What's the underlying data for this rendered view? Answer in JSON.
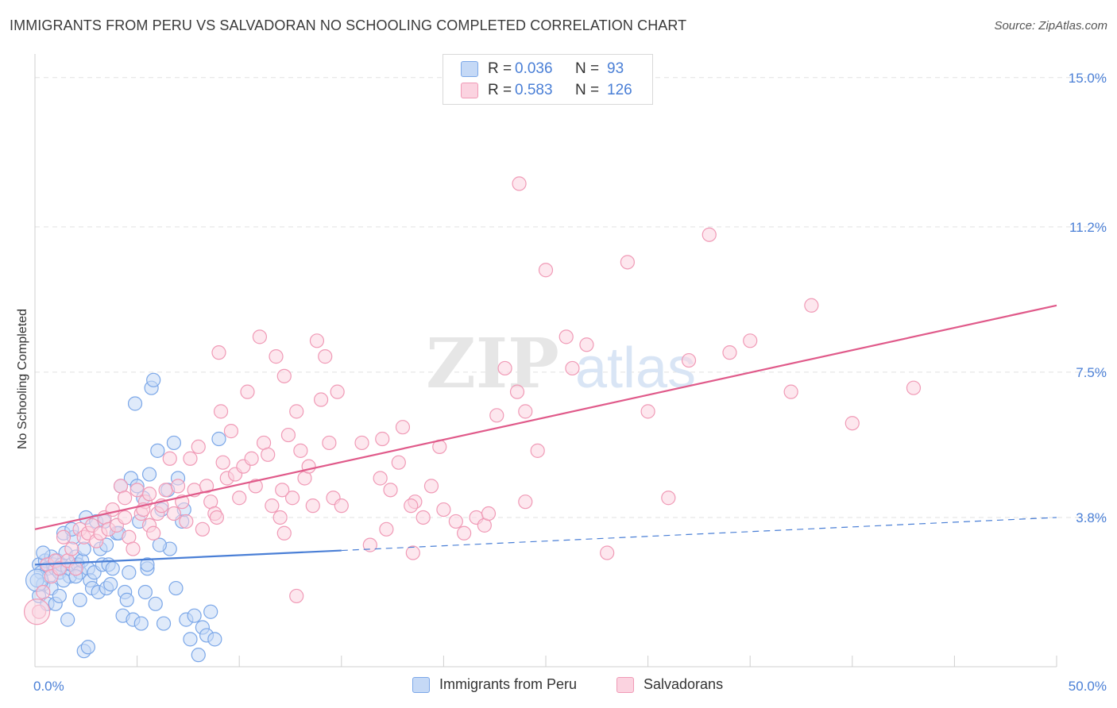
{
  "title": "IMMIGRANTS FROM PERU VS SALVADORAN NO SCHOOLING COMPLETED CORRELATION CHART",
  "source": "Source: ZipAtlas.com",
  "watermark": {
    "zip": "ZIP",
    "atlas": "atlas"
  },
  "legend_top": [
    {
      "r_label": "R =",
      "r_value": "0.036",
      "n_label": "N =",
      "n_value": "93",
      "color": "#7ba7e8",
      "fill": "#c5d9f6"
    },
    {
      "r_label": "R =",
      "r_value": "0.583",
      "n_label": "N =",
      "n_value": "126",
      "color": "#f09ab6",
      "fill": "#fbd3e0"
    }
  ],
  "legend_bottom": [
    {
      "label": "Immigrants from Peru",
      "color": "#7ba7e8",
      "fill": "#c5d9f6"
    },
    {
      "label": "Salvadorans",
      "color": "#f09ab6",
      "fill": "#fbd3e0"
    }
  ],
  "chart_data": {
    "type": "scatter",
    "title": "IMMIGRANTS FROM PERU VS SALVADORAN NO SCHOOLING COMPLETED CORRELATION CHART",
    "xlabel": "",
    "ylabel": "No Schooling Completed",
    "xlim": [
      0,
      50
    ],
    "ylim": [
      0,
      15.4
    ],
    "x_tick_labels": [
      "0.0%",
      "50.0%"
    ],
    "y_tick_labels": [
      "3.8%",
      "7.5%",
      "11.2%",
      "15.0%"
    ],
    "y_ticks": [
      3.8,
      7.5,
      11.2,
      15.0
    ],
    "grid": true,
    "series": [
      {
        "name": "Immigrants from Peru",
        "color": "#4a7fd6",
        "fill": "#c5d9f6",
        "trend": {
          "x0": 0,
          "y0": 2.6,
          "x1": 50,
          "y1": 3.8,
          "solid_until": 15
        },
        "points": [
          [
            0.2,
            2.6
          ],
          [
            0.3,
            2.4
          ],
          [
            0.4,
            2.1
          ],
          [
            0.5,
            2.7
          ],
          [
            0.6,
            2.5
          ],
          [
            0.7,
            2.3
          ],
          [
            0.8,
            2.8
          ],
          [
            0.9,
            2.6
          ],
          [
            1.0,
            2.5
          ],
          [
            1.1,
            2.7
          ],
          [
            1.2,
            2.4
          ],
          [
            1.3,
            2.6
          ],
          [
            1.4,
            3.4
          ],
          [
            1.5,
            2.9
          ],
          [
            1.6,
            2.5
          ],
          [
            1.7,
            2.3
          ],
          [
            1.8,
            2.6
          ],
          [
            1.9,
            3.3
          ],
          [
            2.0,
            2.8
          ],
          [
            2.1,
            2.6
          ],
          [
            2.2,
            2.4
          ],
          [
            2.3,
            2.7
          ],
          [
            2.4,
            3.0
          ],
          [
            2.5,
            3.8
          ],
          [
            2.6,
            2.5
          ],
          [
            2.7,
            2.2
          ],
          [
            2.8,
            2.0
          ],
          [
            2.9,
            2.4
          ],
          [
            3.0,
            3.7
          ],
          [
            3.1,
            1.9
          ],
          [
            3.2,
            3.0
          ],
          [
            3.3,
            2.6
          ],
          [
            3.4,
            3.7
          ],
          [
            3.5,
            2.0
          ],
          [
            3.6,
            2.6
          ],
          [
            3.7,
            2.1
          ],
          [
            3.8,
            2.5
          ],
          [
            4.0,
            3.4
          ],
          [
            4.2,
            4.6
          ],
          [
            4.3,
            1.3
          ],
          [
            4.4,
            1.9
          ],
          [
            4.5,
            1.7
          ],
          [
            4.6,
            2.4
          ],
          [
            4.7,
            4.8
          ],
          [
            4.8,
            1.2
          ],
          [
            4.9,
            6.7
          ],
          [
            5.0,
            4.6
          ],
          [
            5.1,
            3.7
          ],
          [
            5.2,
            1.1
          ],
          [
            5.3,
            4.3
          ],
          [
            5.4,
            1.9
          ],
          [
            5.5,
            2.5
          ],
          [
            5.6,
            4.9
          ],
          [
            5.7,
            7.1
          ],
          [
            5.8,
            7.3
          ],
          [
            5.9,
            1.6
          ],
          [
            6.0,
            5.5
          ],
          [
            6.2,
            4.0
          ],
          [
            6.3,
            1.1
          ],
          [
            6.5,
            4.5
          ],
          [
            6.6,
            3.0
          ],
          [
            6.8,
            5.7
          ],
          [
            6.9,
            2.0
          ],
          [
            7.0,
            4.8
          ],
          [
            7.2,
            3.7
          ],
          [
            7.3,
            4.0
          ],
          [
            7.4,
            1.2
          ],
          [
            7.6,
            0.7
          ],
          [
            7.8,
            1.3
          ],
          [
            8.0,
            0.3
          ],
          [
            8.2,
            1.0
          ],
          [
            8.4,
            0.8
          ],
          [
            8.6,
            1.4
          ],
          [
            8.8,
            0.7
          ],
          [
            9.0,
            5.8
          ],
          [
            0.1,
            2.2
          ],
          [
            0.2,
            1.8
          ],
          [
            0.4,
            2.9
          ],
          [
            0.6,
            1.6
          ],
          [
            0.8,
            2.0
          ],
          [
            1.0,
            1.6
          ],
          [
            1.2,
            1.8
          ],
          [
            1.4,
            2.2
          ],
          [
            1.6,
            1.2
          ],
          [
            1.8,
            3.5
          ],
          [
            2.0,
            2.3
          ],
          [
            2.2,
            1.7
          ],
          [
            2.4,
            0.4
          ],
          [
            2.6,
            0.5
          ],
          [
            3.5,
            3.1
          ],
          [
            4.1,
            3.4
          ],
          [
            5.5,
            2.6
          ],
          [
            6.1,
            3.1
          ]
        ]
      },
      {
        "name": "Salvadorans",
        "color": "#e05a8a",
        "fill": "#fbd3e0",
        "trend": {
          "x0": 0,
          "y0": 3.5,
          "x1": 50,
          "y1": 9.2,
          "solid_until": 50
        },
        "points": [
          [
            0.2,
            1.4
          ],
          [
            0.4,
            1.9
          ],
          [
            0.6,
            2.6
          ],
          [
            0.8,
            2.3
          ],
          [
            1.0,
            2.7
          ],
          [
            1.2,
            2.5
          ],
          [
            1.4,
            3.3
          ],
          [
            1.6,
            2.7
          ],
          [
            1.8,
            3.0
          ],
          [
            2.0,
            2.5
          ],
          [
            2.2,
            3.5
          ],
          [
            2.4,
            3.3
          ],
          [
            2.6,
            3.4
          ],
          [
            2.8,
            3.6
          ],
          [
            3.0,
            3.2
          ],
          [
            3.2,
            3.4
          ],
          [
            3.4,
            3.8
          ],
          [
            3.6,
            3.5
          ],
          [
            3.8,
            4.0
          ],
          [
            4.0,
            3.6
          ],
          [
            4.2,
            4.6
          ],
          [
            4.4,
            4.3
          ],
          [
            4.6,
            3.3
          ],
          [
            4.8,
            3.0
          ],
          [
            5.0,
            4.5
          ],
          [
            5.2,
            3.9
          ],
          [
            5.4,
            4.2
          ],
          [
            5.6,
            3.6
          ],
          [
            5.8,
            3.4
          ],
          [
            6.0,
            3.9
          ],
          [
            6.2,
            4.1
          ],
          [
            6.4,
            4.5
          ],
          [
            6.6,
            5.3
          ],
          [
            6.8,
            3.9
          ],
          [
            7.0,
            4.6
          ],
          [
            7.2,
            4.2
          ],
          [
            7.4,
            3.7
          ],
          [
            7.6,
            5.3
          ],
          [
            7.8,
            4.5
          ],
          [
            8.0,
            5.6
          ],
          [
            8.2,
            3.5
          ],
          [
            8.4,
            4.6
          ],
          [
            8.6,
            4.2
          ],
          [
            8.8,
            3.9
          ],
          [
            9.0,
            8.0
          ],
          [
            9.2,
            5.2
          ],
          [
            9.4,
            4.8
          ],
          [
            9.6,
            6.0
          ],
          [
            9.8,
            4.9
          ],
          [
            10.0,
            4.3
          ],
          [
            10.2,
            5.1
          ],
          [
            10.4,
            7.0
          ],
          [
            10.6,
            5.3
          ],
          [
            10.8,
            4.6
          ],
          [
            11.0,
            8.4
          ],
          [
            11.2,
            5.7
          ],
          [
            11.4,
            5.4
          ],
          [
            11.6,
            4.1
          ],
          [
            11.8,
            7.9
          ],
          [
            12.0,
            3.8
          ],
          [
            12.2,
            7.4
          ],
          [
            12.4,
            5.9
          ],
          [
            12.6,
            4.3
          ],
          [
            12.8,
            6.5
          ],
          [
            13.0,
            5.5
          ],
          [
            13.2,
            4.8
          ],
          [
            13.4,
            5.1
          ],
          [
            13.6,
            4.1
          ],
          [
            13.8,
            8.3
          ],
          [
            14.0,
            6.8
          ],
          [
            14.2,
            7.9
          ],
          [
            14.4,
            5.7
          ],
          [
            14.6,
            4.3
          ],
          [
            14.8,
            7.0
          ],
          [
            15.0,
            4.1
          ],
          [
            16.0,
            5.7
          ],
          [
            16.4,
            3.1
          ],
          [
            17.0,
            5.8
          ],
          [
            17.4,
            4.5
          ],
          [
            17.8,
            5.2
          ],
          [
            18.0,
            6.1
          ],
          [
            18.6,
            4.2
          ],
          [
            19.0,
            3.8
          ],
          [
            19.4,
            4.6
          ],
          [
            19.8,
            5.6
          ],
          [
            20.0,
            4.0
          ],
          [
            20.6,
            3.7
          ],
          [
            21.0,
            3.4
          ],
          [
            21.6,
            3.8
          ],
          [
            22.0,
            3.6
          ],
          [
            22.6,
            6.4
          ],
          [
            23.0,
            7.6
          ],
          [
            23.6,
            7.0
          ],
          [
            24.0,
            6.5
          ],
          [
            24.6,
            5.5
          ],
          [
            25.0,
            10.1
          ],
          [
            26.0,
            8.4
          ],
          [
            27.0,
            8.2
          ],
          [
            28.0,
            2.9
          ],
          [
            29.0,
            10.3
          ],
          [
            30.0,
            6.5
          ],
          [
            31.0,
            4.3
          ],
          [
            32.0,
            7.8
          ],
          [
            33.0,
            11.0
          ],
          [
            34.0,
            8.0
          ],
          [
            35.0,
            8.3
          ],
          [
            37.0,
            7.0
          ],
          [
            38.0,
            9.2
          ],
          [
            40.0,
            6.2
          ],
          [
            43.0,
            7.1
          ],
          [
            4.4,
            3.8
          ],
          [
            5.6,
            4.4
          ],
          [
            9.1,
            6.5
          ],
          [
            12.1,
            4.5
          ],
          [
            16.9,
            4.8
          ],
          [
            17.2,
            3.5
          ],
          [
            18.5,
            2.9
          ],
          [
            24.0,
            4.2
          ],
          [
            26.3,
            7.6
          ],
          [
            23.7,
            12.3
          ],
          [
            12.2,
            3.4
          ],
          [
            5.3,
            4.0
          ],
          [
            8.9,
            3.8
          ],
          [
            22.2,
            3.9
          ],
          [
            18.4,
            4.1
          ],
          [
            12.8,
            1.8
          ]
        ]
      }
    ]
  }
}
